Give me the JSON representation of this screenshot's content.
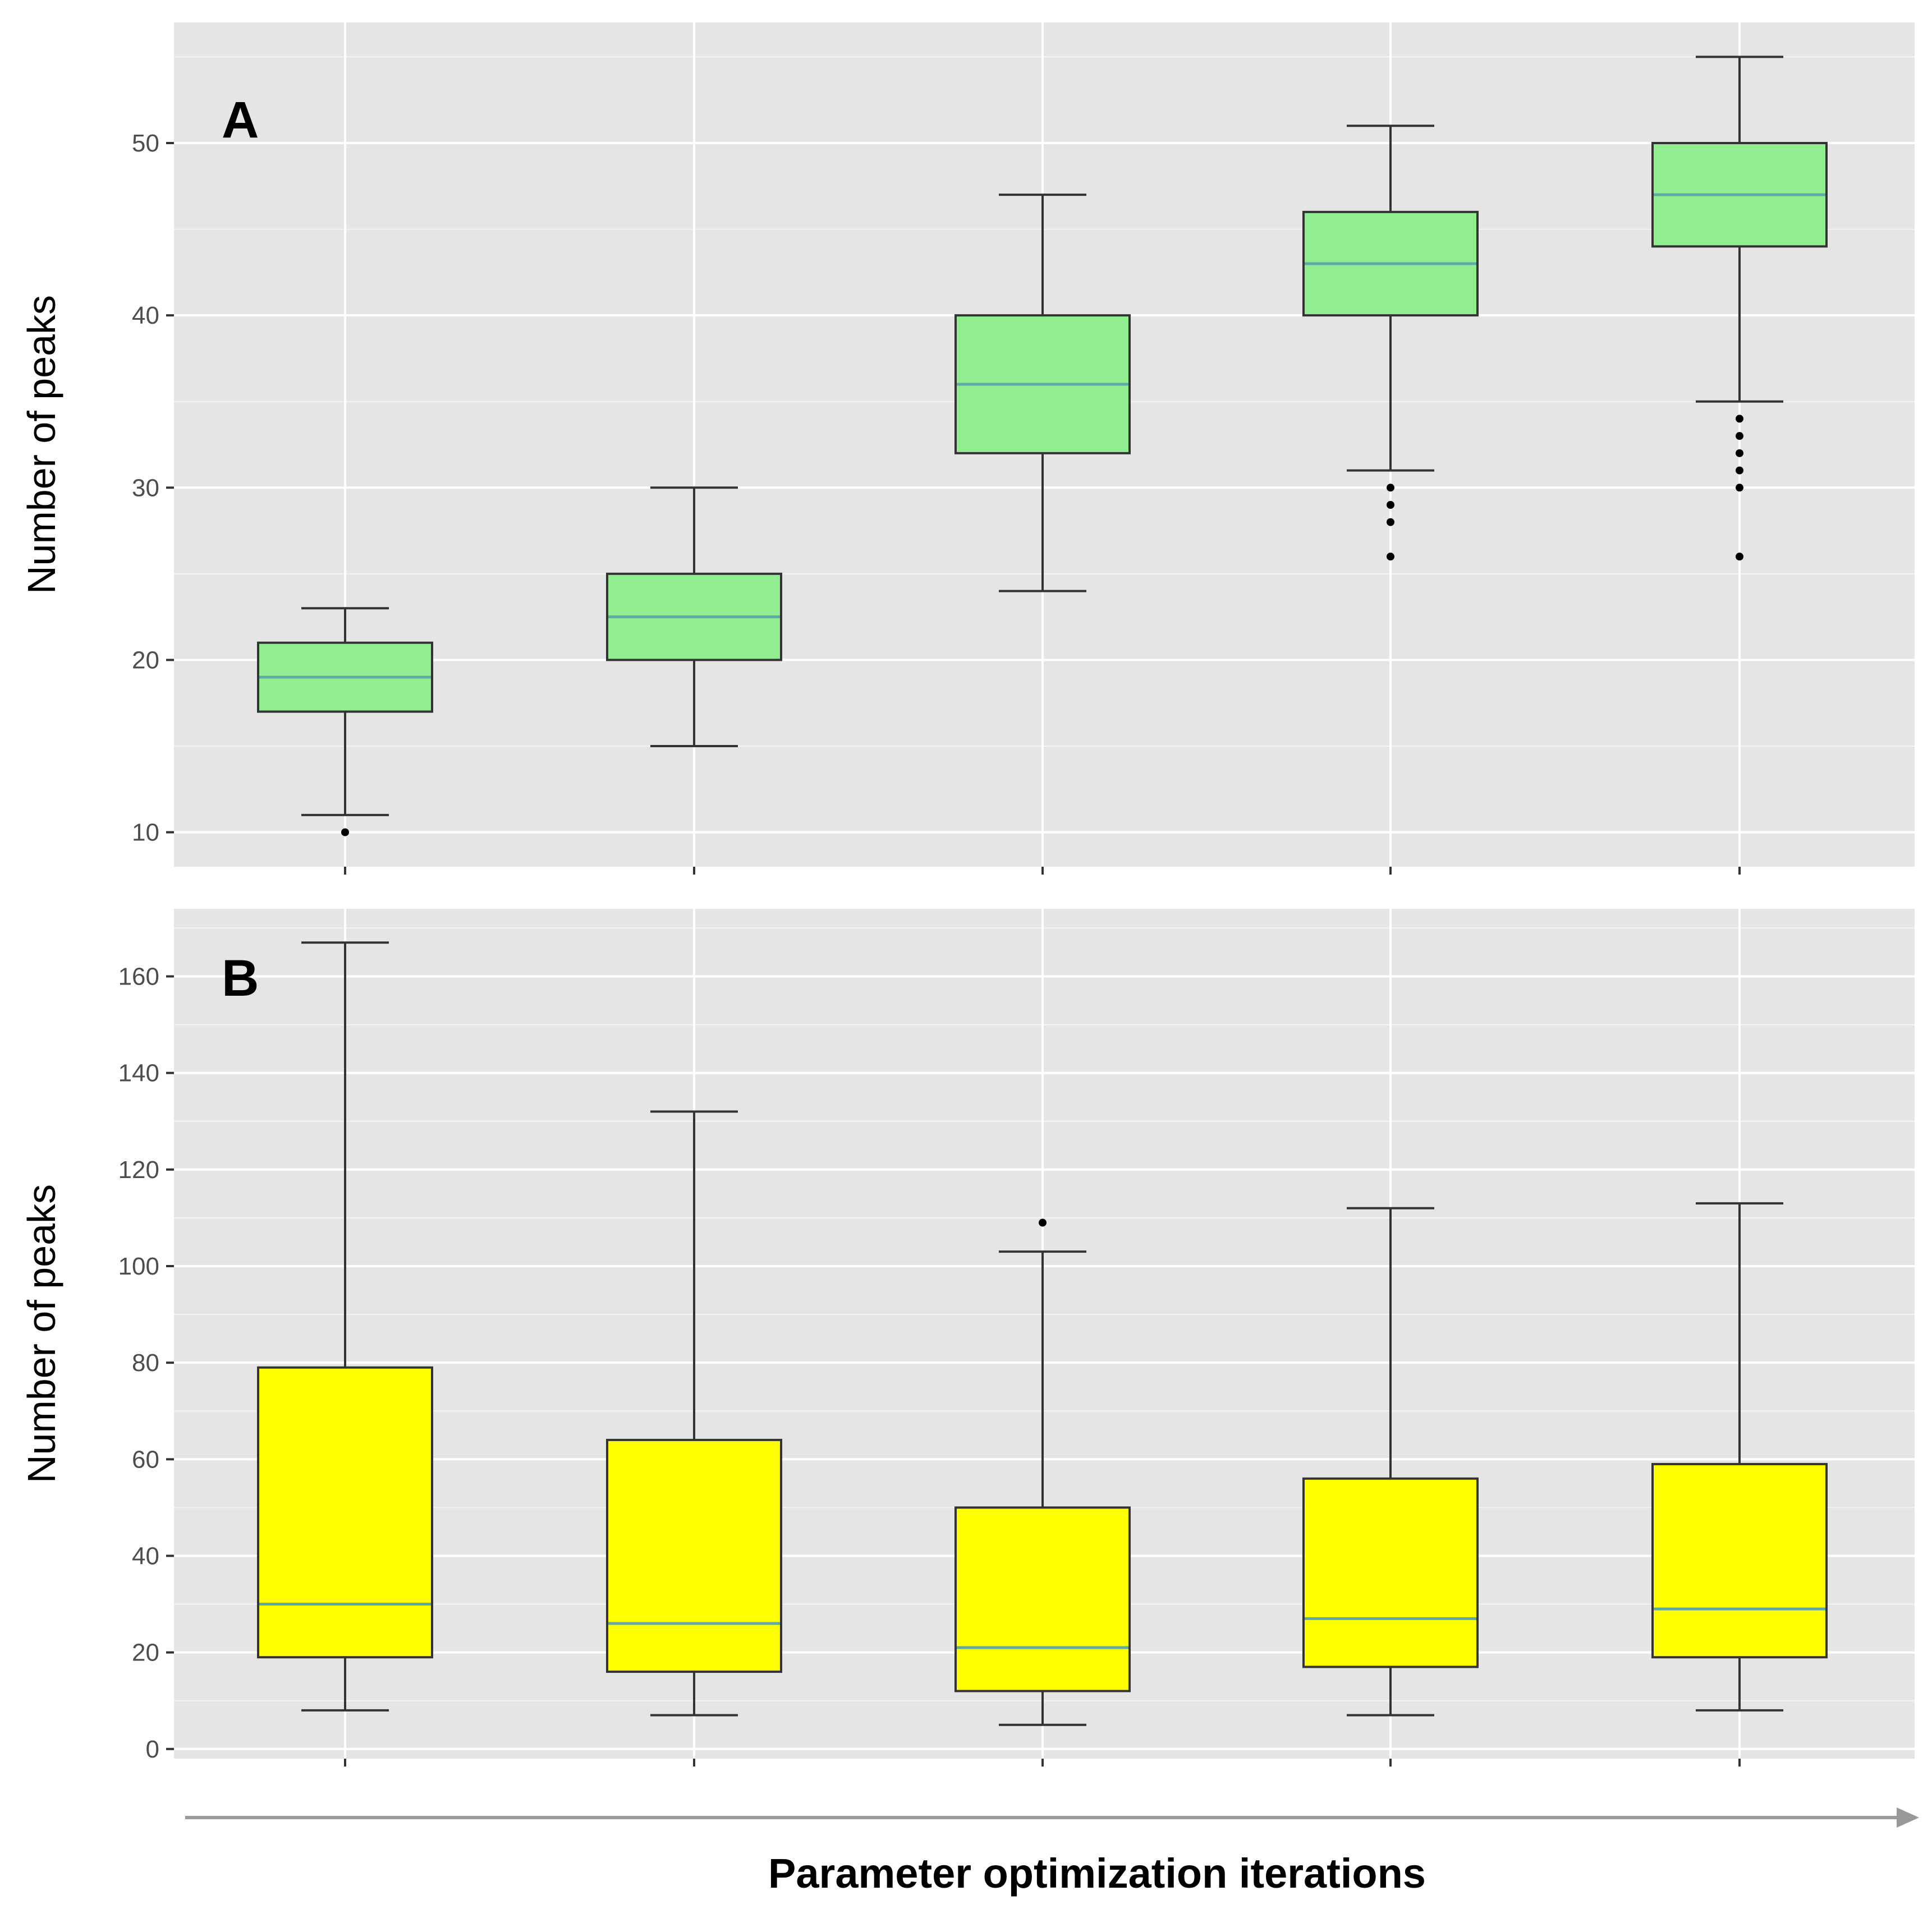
{
  "figure": {
    "xlabel": "Parameter optimization iterations",
    "colors": {
      "panel_bg": "#e5e5e5",
      "grid": "#ffffff",
      "whisker": "#333333",
      "box_border": "#333333",
      "median": "#5fa8a8",
      "arrow": "#999999",
      "tick_text": "#4d4d4d"
    }
  },
  "chart_data": [
    {
      "type": "box",
      "panel_label": "A",
      "ylabel": "Number of peaks",
      "ylim": [
        8,
        57
      ],
      "yticks": [
        10,
        20,
        30,
        40,
        50
      ],
      "grid": true,
      "fill_color": "#90ee90",
      "boxes": [
        {
          "whisker_low": 11,
          "q1": 17,
          "median": 19,
          "q3": 21,
          "whisker_high": 23,
          "outliers": [
            10
          ]
        },
        {
          "whisker_low": 15,
          "q1": 20,
          "median": 22.5,
          "q3": 25,
          "whisker_high": 30,
          "outliers": []
        },
        {
          "whisker_low": 24,
          "q1": 32,
          "median": 36,
          "q3": 40,
          "whisker_high": 47,
          "outliers": []
        },
        {
          "whisker_low": 31,
          "q1": 40,
          "median": 43,
          "q3": 46,
          "whisker_high": 51,
          "outliers": [
            26,
            28,
            29,
            30
          ]
        },
        {
          "whisker_low": 35,
          "q1": 44,
          "median": 47,
          "q3": 50,
          "whisker_high": 55,
          "outliers": [
            26,
            30,
            31,
            32,
            33,
            34
          ]
        }
      ]
    },
    {
      "type": "box",
      "panel_label": "B",
      "ylabel": "Number of peaks",
      "ylim": [
        -2,
        174
      ],
      "yticks": [
        0,
        20,
        40,
        60,
        80,
        100,
        120,
        140,
        160
      ],
      "grid": true,
      "fill_color": "#ffff00",
      "boxes": [
        {
          "whisker_low": 8,
          "q1": 19,
          "median": 30,
          "q3": 79,
          "whisker_high": 167,
          "outliers": []
        },
        {
          "whisker_low": 7,
          "q1": 16,
          "median": 26,
          "q3": 64,
          "whisker_high": 132,
          "outliers": []
        },
        {
          "whisker_low": 5,
          "q1": 12,
          "median": 21,
          "q3": 50,
          "whisker_high": 103,
          "outliers": [
            109
          ]
        },
        {
          "whisker_low": 7,
          "q1": 17,
          "median": 27,
          "q3": 56,
          "whisker_high": 112,
          "outliers": []
        },
        {
          "whisker_low": 8,
          "q1": 19,
          "median": 29,
          "q3": 59,
          "whisker_high": 113,
          "outliers": []
        }
      ]
    }
  ]
}
